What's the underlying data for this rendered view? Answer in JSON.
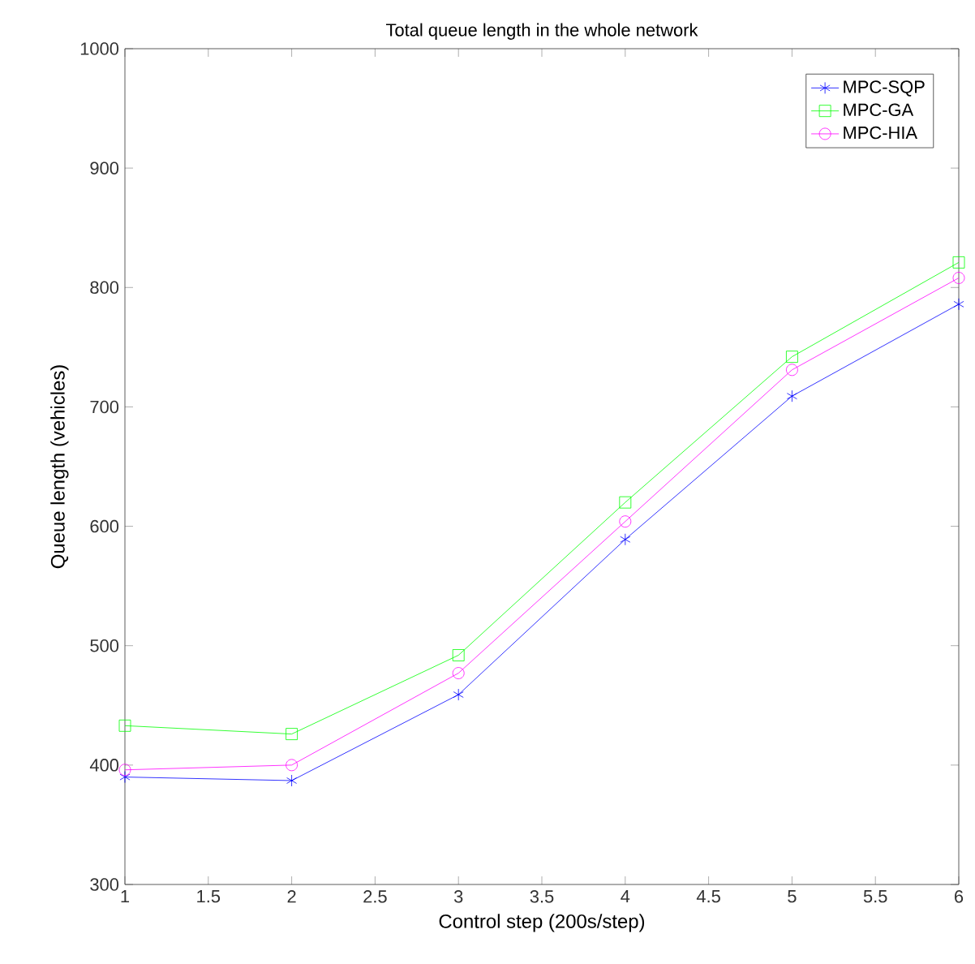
{
  "chart_data": {
    "type": "line",
    "title": "Total queue length in the whole network",
    "xlabel": "Control step (200s/step)",
    "ylabel": "Queue length (vehicles)",
    "x": [
      1,
      2,
      3,
      4,
      5,
      6
    ],
    "series": [
      {
        "name": "MPC-SQP",
        "color": "#0000ff",
        "marker": "cross",
        "values": [
          390,
          387,
          459,
          589,
          709,
          786
        ]
      },
      {
        "name": "MPC-GA",
        "color": "#00ff00",
        "marker": "square",
        "values": [
          433,
          426,
          492,
          620,
          742,
          821
        ]
      },
      {
        "name": "MPC-HIA",
        "color": "#ff00ff",
        "marker": "circle",
        "values": [
          396,
          400,
          477,
          604,
          731,
          808
        ]
      }
    ],
    "xlim": [
      1,
      6
    ],
    "xticks": [
      1,
      1.5,
      2,
      2.5,
      3,
      3.5,
      4,
      4.5,
      5,
      5.5,
      6
    ],
    "ylim": [
      300,
      1000
    ],
    "yticks": [
      300,
      400,
      500,
      600,
      700,
      800,
      900,
      1000
    ],
    "legend": "top right",
    "grid": false,
    "line_style": "solid"
  }
}
